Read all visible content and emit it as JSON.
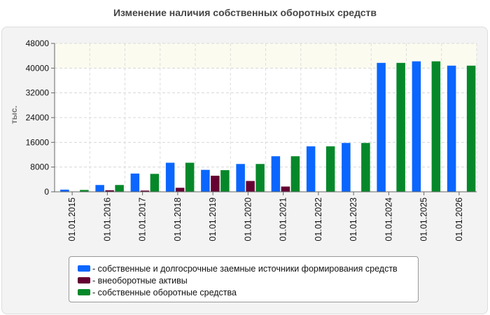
{
  "chart_data": {
    "type": "bar",
    "title": "Изменение наличия собственных оборотных средств",
    "ylabel": "тыс.",
    "xlabel": "",
    "ylim": [
      0,
      48000
    ],
    "yticks": [
      0,
      8000,
      16000,
      24000,
      32000,
      40000,
      48000
    ],
    "grid": true,
    "legend_position": "bottom",
    "categories": [
      "01.01.2015",
      "01.01.2016",
      "01.01.2017",
      "01.01.2018",
      "01.01.2019",
      "01.01.2020",
      "01.01.2021",
      "01.01.2022",
      "01.01.2023",
      "01.01.2024",
      "01.01.2025",
      "01.01.2026"
    ],
    "series": [
      {
        "name": "собственные и долгосрочные заемные источники формирования средств",
        "color": "#0a66ff",
        "values": [
          700,
          2200,
          5900,
          9400,
          7100,
          9000,
          11500,
          14700,
          15800,
          41700,
          42200,
          40800
        ]
      },
      {
        "name": "внеоборотные активы",
        "color": "#660033",
        "values": [
          100,
          500,
          400,
          1300,
          5200,
          3500,
          1700,
          100,
          100,
          100,
          100,
          100
        ]
      },
      {
        "name": "собственные оборотные средства",
        "color": "#06882a",
        "values": [
          600,
          2200,
          5800,
          9400,
          7000,
          9000,
          11500,
          14700,
          15800,
          41700,
          42200,
          40800
        ]
      }
    ]
  }
}
